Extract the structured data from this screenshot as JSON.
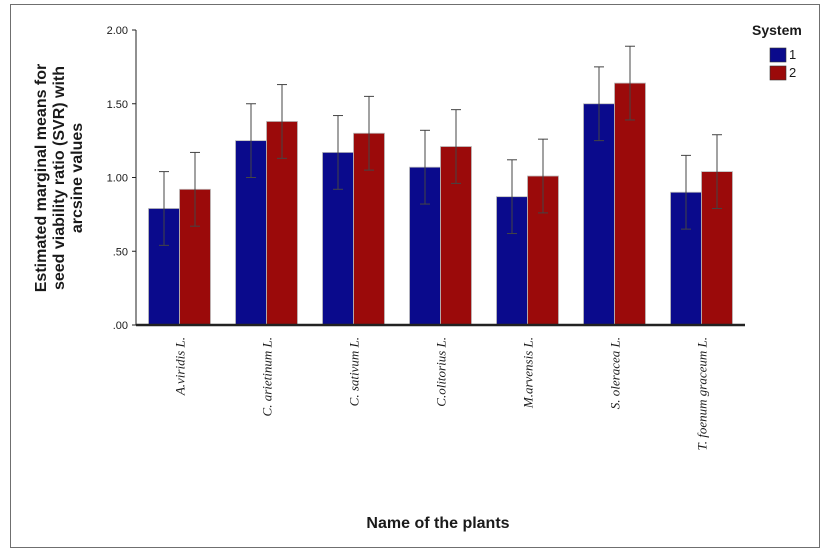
{
  "chart_data": {
    "type": "bar",
    "ylabel_lines": [
      "Estimated marginal means for",
      "seed viability ratio (SVR) with",
      "arcsine values"
    ],
    "xlabel": "Name of the plants",
    "ylim": [
      0,
      2.0
    ],
    "yticks": [
      0.0,
      0.5,
      1.0,
      1.5,
      2.0
    ],
    "ytick_labels": [
      ".00",
      ".50",
      "1.00",
      "1.50",
      "2.00"
    ],
    "categories": [
      "A.viridis L.",
      "C. arietinum L.",
      "C. sativum L.",
      "C.olitorius L.",
      "M.arvensis L.",
      "S. oleracea L.",
      "T. foenum graceum L."
    ],
    "series": [
      {
        "name": "1",
        "color": "#0a0a8c",
        "values": [
          0.79,
          1.25,
          1.17,
          1.07,
          0.87,
          1.5,
          0.9
        ],
        "err_low": [
          0.54,
          1.0,
          0.92,
          0.82,
          0.62,
          1.25,
          0.65
        ],
        "err_high": [
          1.04,
          1.5,
          1.42,
          1.32,
          1.12,
          1.75,
          1.15
        ]
      },
      {
        "name": "2",
        "color": "#9b0a0a",
        "values": [
          0.92,
          1.38,
          1.3,
          1.21,
          1.01,
          1.64,
          1.04
        ],
        "err_low": [
          0.67,
          1.13,
          1.05,
          0.96,
          0.76,
          1.39,
          0.79
        ],
        "err_high": [
          1.17,
          1.63,
          1.55,
          1.46,
          1.26,
          1.89,
          1.29
        ]
      }
    ],
    "legend": {
      "title": "System",
      "position": "top-right"
    },
    "grid": false
  }
}
